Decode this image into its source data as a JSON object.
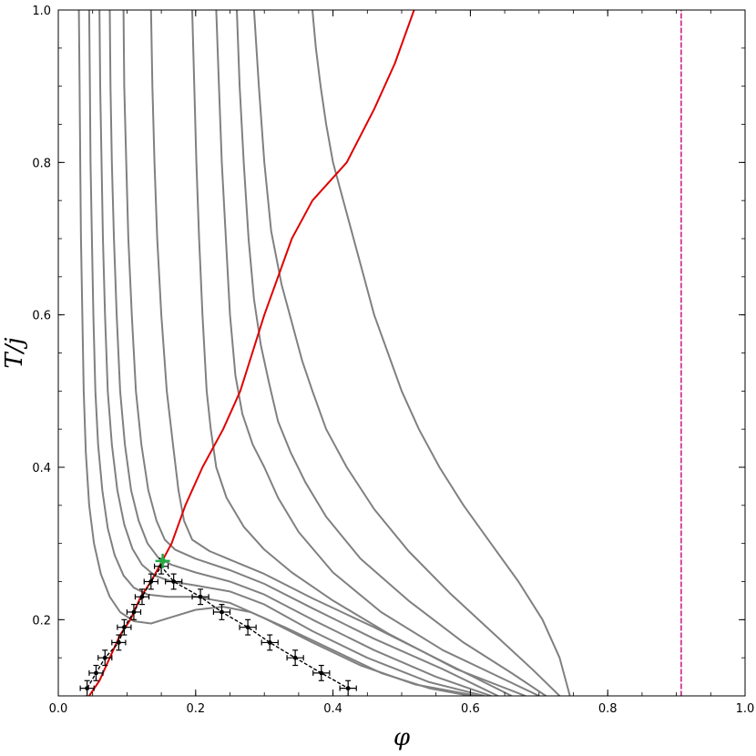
{
  "chart_data": {
    "type": "line",
    "title": "",
    "xlabel": "φ",
    "ylabel": "T/j",
    "xlim": [
      0.0,
      1.0
    ],
    "ylim": [
      0.1,
      1.0
    ],
    "xticks": [
      "0.0",
      "0.2",
      "0.4",
      "0.6",
      "0.8",
      "1.0"
    ],
    "yticks": [
      "0.2",
      "0.4",
      "0.6",
      "0.8",
      "1.0"
    ],
    "grid": false,
    "colors": {
      "gray_curves": "#808080",
      "red_curve": "#e00000",
      "dashed_vertical": "#cc0077",
      "data_points": "#000000",
      "critical_point": "#22aa44"
    },
    "series": [
      {
        "style": "gray",
        "points": [
          [
            0.03,
            1.0
          ],
          [
            0.031,
            0.9
          ],
          [
            0.032,
            0.8
          ],
          [
            0.033,
            0.7
          ],
          [
            0.035,
            0.6
          ],
          [
            0.037,
            0.5
          ],
          [
            0.04,
            0.42
          ],
          [
            0.045,
            0.35
          ],
          [
            0.052,
            0.3
          ],
          [
            0.062,
            0.26
          ],
          [
            0.075,
            0.23
          ],
          [
            0.09,
            0.21
          ],
          [
            0.11,
            0.198
          ],
          [
            0.135,
            0.195
          ],
          [
            0.16,
            0.202
          ],
          [
            0.2,
            0.213
          ],
          [
            0.24,
            0.217
          ],
          [
            0.28,
            0.21
          ],
          [
            0.33,
            0.19
          ],
          [
            0.4,
            0.16
          ],
          [
            0.47,
            0.13
          ],
          [
            0.54,
            0.11
          ],
          [
            0.6,
            0.1
          ]
        ]
      },
      {
        "style": "gray",
        "points": [
          [
            0.045,
            1.0
          ],
          [
            0.046,
            0.9
          ],
          [
            0.047,
            0.8
          ],
          [
            0.049,
            0.7
          ],
          [
            0.051,
            0.6
          ],
          [
            0.054,
            0.5
          ],
          [
            0.058,
            0.43
          ],
          [
            0.064,
            0.37
          ],
          [
            0.072,
            0.32
          ],
          [
            0.082,
            0.285
          ],
          [
            0.095,
            0.258
          ],
          [
            0.11,
            0.242
          ],
          [
            0.13,
            0.233
          ],
          [
            0.16,
            0.23
          ],
          [
            0.2,
            0.23
          ],
          [
            0.25,
            0.222
          ],
          [
            0.3,
            0.202
          ],
          [
            0.37,
            0.17
          ],
          [
            0.44,
            0.14
          ],
          [
            0.52,
            0.115
          ],
          [
            0.61,
            0.1
          ]
        ]
      },
      {
        "style": "gray",
        "points": [
          [
            0.06,
            1.0
          ],
          [
            0.061,
            0.9
          ],
          [
            0.063,
            0.8
          ],
          [
            0.065,
            0.7
          ],
          [
            0.068,
            0.6
          ],
          [
            0.072,
            0.5
          ],
          [
            0.078,
            0.43
          ],
          [
            0.086,
            0.37
          ],
          [
            0.096,
            0.325
          ],
          [
            0.108,
            0.293
          ],
          [
            0.122,
            0.272
          ],
          [
            0.14,
            0.258
          ],
          [
            0.165,
            0.25
          ],
          [
            0.2,
            0.245
          ],
          [
            0.25,
            0.237
          ],
          [
            0.3,
            0.22
          ],
          [
            0.37,
            0.185
          ],
          [
            0.45,
            0.15
          ],
          [
            0.54,
            0.118
          ],
          [
            0.62,
            0.1
          ]
        ]
      },
      {
        "style": "gray",
        "points": [
          [
            0.075,
            1.0
          ],
          [
            0.076,
            0.9
          ],
          [
            0.078,
            0.8
          ],
          [
            0.081,
            0.7
          ],
          [
            0.085,
            0.6
          ],
          [
            0.09,
            0.5
          ],
          [
            0.097,
            0.43
          ],
          [
            0.106,
            0.37
          ],
          [
            0.117,
            0.33
          ],
          [
            0.13,
            0.3
          ],
          [
            0.145,
            0.282
          ],
          [
            0.165,
            0.272
          ],
          [
            0.2,
            0.262
          ],
          [
            0.25,
            0.25
          ],
          [
            0.3,
            0.233
          ],
          [
            0.37,
            0.2
          ],
          [
            0.46,
            0.16
          ],
          [
            0.55,
            0.125
          ],
          [
            0.63,
            0.1
          ]
        ]
      },
      {
        "style": "gray",
        "points": [
          [
            0.095,
            1.0
          ],
          [
            0.096,
            0.9
          ],
          [
            0.099,
            0.8
          ],
          [
            0.102,
            0.7
          ],
          [
            0.107,
            0.6
          ],
          [
            0.113,
            0.5
          ],
          [
            0.121,
            0.43
          ],
          [
            0.131,
            0.37
          ],
          [
            0.143,
            0.33
          ],
          [
            0.155,
            0.305
          ],
          [
            0.17,
            0.292
          ],
          [
            0.2,
            0.28
          ],
          [
            0.25,
            0.265
          ],
          [
            0.3,
            0.247
          ],
          [
            0.37,
            0.215
          ],
          [
            0.46,
            0.175
          ],
          [
            0.56,
            0.135
          ],
          [
            0.64,
            0.1
          ]
        ]
      },
      {
        "style": "gray",
        "points": [
          [
            0.135,
            1.0
          ],
          [
            0.137,
            0.9
          ],
          [
            0.14,
            0.8
          ],
          [
            0.144,
            0.7
          ],
          [
            0.15,
            0.6
          ],
          [
            0.158,
            0.5
          ],
          [
            0.167,
            0.43
          ],
          [
            0.175,
            0.37
          ],
          [
            0.183,
            0.33
          ],
          [
            0.195,
            0.305
          ],
          [
            0.22,
            0.29
          ],
          [
            0.26,
            0.275
          ],
          [
            0.3,
            0.26
          ],
          [
            0.37,
            0.228
          ],
          [
            0.46,
            0.19
          ],
          [
            0.56,
            0.145
          ],
          [
            0.66,
            0.1
          ]
        ]
      },
      {
        "style": "gray",
        "points": [
          [
            0.195,
            1.0
          ],
          [
            0.198,
            0.9
          ],
          [
            0.201,
            0.8
          ],
          [
            0.205,
            0.7
          ],
          [
            0.21,
            0.6
          ],
          [
            0.216,
            0.5
          ],
          [
            0.222,
            0.45
          ],
          [
            0.23,
            0.4
          ],
          [
            0.245,
            0.36
          ],
          [
            0.27,
            0.322
          ],
          [
            0.3,
            0.292
          ],
          [
            0.34,
            0.262
          ],
          [
            0.4,
            0.225
          ],
          [
            0.48,
            0.182
          ],
          [
            0.58,
            0.135
          ],
          [
            0.68,
            0.1
          ]
        ]
      },
      {
        "style": "gray",
        "points": [
          [
            0.23,
            1.0
          ],
          [
            0.234,
            0.9
          ],
          [
            0.238,
            0.8
          ],
          [
            0.244,
            0.7
          ],
          [
            0.25,
            0.6
          ],
          [
            0.258,
            0.52
          ],
          [
            0.268,
            0.47
          ],
          [
            0.283,
            0.43
          ],
          [
            0.3,
            0.4
          ],
          [
            0.32,
            0.36
          ],
          [
            0.35,
            0.315
          ],
          [
            0.4,
            0.262
          ],
          [
            0.47,
            0.21
          ],
          [
            0.56,
            0.16
          ],
          [
            0.63,
            0.13
          ],
          [
            0.7,
            0.1
          ]
        ]
      },
      {
        "style": "gray",
        "points": [
          [
            0.26,
            1.0
          ],
          [
            0.264,
            0.9
          ],
          [
            0.27,
            0.8
          ],
          [
            0.277,
            0.7
          ],
          [
            0.285,
            0.62
          ],
          [
            0.295,
            0.56
          ],
          [
            0.307,
            0.51
          ],
          [
            0.32,
            0.46
          ],
          [
            0.338,
            0.42
          ],
          [
            0.36,
            0.38
          ],
          [
            0.39,
            0.335
          ],
          [
            0.44,
            0.28
          ],
          [
            0.51,
            0.225
          ],
          [
            0.59,
            0.17
          ],
          [
            0.66,
            0.13
          ],
          [
            0.71,
            0.1
          ]
        ]
      },
      {
        "style": "gray",
        "points": [
          [
            0.285,
            1.0
          ],
          [
            0.292,
            0.9
          ],
          [
            0.3,
            0.8
          ],
          [
            0.31,
            0.71
          ],
          [
            0.325,
            0.64
          ],
          [
            0.34,
            0.59
          ],
          [
            0.355,
            0.54
          ],
          [
            0.37,
            0.5
          ],
          [
            0.39,
            0.45
          ],
          [
            0.42,
            0.4
          ],
          [
            0.46,
            0.345
          ],
          [
            0.51,
            0.29
          ],
          [
            0.57,
            0.235
          ],
          [
            0.63,
            0.185
          ],
          [
            0.69,
            0.135
          ],
          [
            0.73,
            0.1
          ]
        ]
      },
      {
        "style": "gray",
        "points": [
          [
            0.37,
            1.0
          ],
          [
            0.375,
            0.95
          ],
          [
            0.382,
            0.9
          ],
          [
            0.39,
            0.85
          ],
          [
            0.4,
            0.8
          ],
          [
            0.415,
            0.75
          ],
          [
            0.43,
            0.7
          ],
          [
            0.445,
            0.65
          ],
          [
            0.46,
            0.6
          ],
          [
            0.48,
            0.55
          ],
          [
            0.5,
            0.5
          ],
          [
            0.525,
            0.45
          ],
          [
            0.555,
            0.4
          ],
          [
            0.59,
            0.35
          ],
          [
            0.63,
            0.3
          ],
          [
            0.67,
            0.25
          ],
          [
            0.705,
            0.2
          ],
          [
            0.73,
            0.15
          ],
          [
            0.745,
            0.1
          ]
        ]
      },
      {
        "style": "red",
        "points": [
          [
            0.045,
            0.1
          ],
          [
            0.06,
            0.12
          ],
          [
            0.075,
            0.15
          ],
          [
            0.09,
            0.18
          ],
          [
            0.105,
            0.2
          ],
          [
            0.12,
            0.23
          ],
          [
            0.135,
            0.25
          ],
          [
            0.15,
            0.275
          ],
          [
            0.165,
            0.3
          ],
          [
            0.185,
            0.35
          ],
          [
            0.21,
            0.4
          ],
          [
            0.24,
            0.45
          ],
          [
            0.265,
            0.5
          ],
          [
            0.3,
            0.6
          ],
          [
            0.34,
            0.7
          ],
          [
            0.37,
            0.75
          ],
          [
            0.42,
            0.8
          ],
          [
            0.46,
            0.87
          ],
          [
            0.49,
            0.93
          ],
          [
            0.518,
            1.0
          ]
        ]
      },
      {
        "style": "dashed-vertical",
        "points": [
          [
            0.907,
            0.1
          ],
          [
            0.907,
            1.0
          ]
        ]
      }
    ],
    "data_points": [
      {
        "x": 0.042,
        "y": 0.11,
        "xerr": 0.01,
        "yerr": 0.01
      },
      {
        "x": 0.055,
        "y": 0.13,
        "xerr": 0.01,
        "yerr": 0.01
      },
      {
        "x": 0.068,
        "y": 0.15,
        "xerr": 0.01,
        "yerr": 0.01
      },
      {
        "x": 0.088,
        "y": 0.17,
        "xerr": 0.01,
        "yerr": 0.01
      },
      {
        "x": 0.096,
        "y": 0.19,
        "xerr": 0.01,
        "yerr": 0.01
      },
      {
        "x": 0.11,
        "y": 0.21,
        "xerr": 0.01,
        "yerr": 0.01
      },
      {
        "x": 0.122,
        "y": 0.23,
        "xerr": 0.01,
        "yerr": 0.01
      },
      {
        "x": 0.135,
        "y": 0.25,
        "xerr": 0.01,
        "yerr": 0.01
      },
      {
        "x": 0.15,
        "y": 0.27,
        "xerr": 0.01,
        "yerr": 0.01
      },
      {
        "x": 0.168,
        "y": 0.25,
        "xerr": 0.012,
        "yerr": 0.01
      },
      {
        "x": 0.207,
        "y": 0.23,
        "xerr": 0.012,
        "yerr": 0.01
      },
      {
        "x": 0.238,
        "y": 0.21,
        "xerr": 0.012,
        "yerr": 0.01
      },
      {
        "x": 0.276,
        "y": 0.19,
        "xerr": 0.012,
        "yerr": 0.01
      },
      {
        "x": 0.308,
        "y": 0.17,
        "xerr": 0.012,
        "yerr": 0.01
      },
      {
        "x": 0.345,
        "y": 0.15,
        "xerr": 0.012,
        "yerr": 0.01
      },
      {
        "x": 0.383,
        "y": 0.13,
        "xerr": 0.012,
        "yerr": 0.01
      },
      {
        "x": 0.422,
        "y": 0.11,
        "xerr": 0.012,
        "yerr": 0.01
      }
    ],
    "critical_point": {
      "x": 0.152,
      "y": 0.277
    }
  }
}
